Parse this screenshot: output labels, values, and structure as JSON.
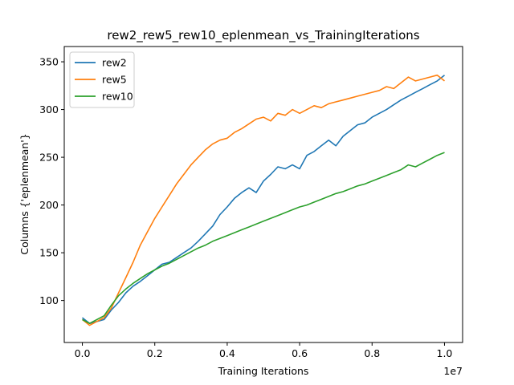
{
  "chart_data": {
    "type": "line",
    "title": "rew2_rew5_rew10_eplenmean_vs_TrainingIterations",
    "xlabel": "Training Iterations",
    "ylabel": "Columns {'eplenmean'}",
    "x_offset_label": "1e7",
    "xlim": [
      -0.05,
      1.05
    ],
    "ylim": [
      56,
      366
    ],
    "x_tick_values": [
      0.0,
      0.2,
      0.4,
      0.6,
      0.8,
      1.0
    ],
    "x_tick_labels": [
      "0.0",
      "0.2",
      "0.4",
      "0.6",
      "0.8",
      "1.0"
    ],
    "y_tick_values": [
      100,
      150,
      200,
      250,
      300,
      350
    ],
    "y_tick_labels": [
      "100",
      "150",
      "200",
      "250",
      "300",
      "350"
    ],
    "grid": false,
    "legend_position": "top-left",
    "series": [
      {
        "name": "rew2",
        "color": "#1f77b4",
        "x": [
          0.0,
          0.02,
          0.04,
          0.06,
          0.08,
          0.1,
          0.12,
          0.14,
          0.16,
          0.18,
          0.2,
          0.22,
          0.24,
          0.26,
          0.28,
          0.3,
          0.32,
          0.34,
          0.36,
          0.38,
          0.4,
          0.42,
          0.44,
          0.46,
          0.48,
          0.5,
          0.52,
          0.54,
          0.56,
          0.58,
          0.6,
          0.62,
          0.64,
          0.66,
          0.68,
          0.7,
          0.72,
          0.74,
          0.76,
          0.78,
          0.8,
          0.82,
          0.84,
          0.86,
          0.88,
          0.9,
          0.92,
          0.94,
          0.96,
          0.98,
          1.0
        ],
        "y": [
          82,
          76,
          78,
          80,
          90,
          98,
          108,
          115,
          120,
          126,
          132,
          138,
          140,
          145,
          150,
          155,
          162,
          170,
          178,
          190,
          198,
          207,
          213,
          218,
          213,
          225,
          232,
          240,
          238,
          242,
          238,
          252,
          256,
          262,
          268,
          262,
          272,
          278,
          284,
          286,
          292,
          296,
          300,
          305,
          310,
          314,
          318,
          322,
          326,
          330,
          336
        ]
      },
      {
        "name": "rew5",
        "color": "#ff7f0e",
        "x": [
          0.0,
          0.02,
          0.04,
          0.06,
          0.08,
          0.1,
          0.12,
          0.14,
          0.16,
          0.18,
          0.2,
          0.22,
          0.24,
          0.26,
          0.28,
          0.3,
          0.32,
          0.34,
          0.36,
          0.38,
          0.4,
          0.42,
          0.44,
          0.46,
          0.48,
          0.5,
          0.52,
          0.54,
          0.56,
          0.58,
          0.6,
          0.62,
          0.64,
          0.66,
          0.68,
          0.7,
          0.72,
          0.74,
          0.76,
          0.78,
          0.8,
          0.82,
          0.84,
          0.86,
          0.88,
          0.9,
          0.92,
          0.94,
          0.96,
          0.98,
          1.0
        ],
        "y": [
          80,
          74,
          78,
          82,
          92,
          108,
          124,
          140,
          158,
          172,
          186,
          198,
          210,
          222,
          232,
          242,
          250,
          258,
          264,
          268,
          270,
          276,
          280,
          285,
          290,
          292,
          288,
          296,
          294,
          300,
          296,
          300,
          304,
          302,
          306,
          308,
          310,
          312,
          314,
          316,
          318,
          320,
          324,
          322,
          328,
          334,
          330,
          332,
          334,
          336,
          330
        ]
      },
      {
        "name": "rew10",
        "color": "#2ca02c",
        "x": [
          0.0,
          0.02,
          0.04,
          0.06,
          0.08,
          0.1,
          0.12,
          0.14,
          0.16,
          0.18,
          0.2,
          0.22,
          0.24,
          0.26,
          0.28,
          0.3,
          0.32,
          0.34,
          0.36,
          0.38,
          0.4,
          0.42,
          0.44,
          0.46,
          0.48,
          0.5,
          0.52,
          0.54,
          0.56,
          0.58,
          0.6,
          0.62,
          0.64,
          0.66,
          0.68,
          0.7,
          0.72,
          0.74,
          0.76,
          0.78,
          0.8,
          0.82,
          0.84,
          0.86,
          0.88,
          0.9,
          0.92,
          0.94,
          0.96,
          0.98,
          1.0
        ],
        "y": [
          80,
          76,
          80,
          84,
          95,
          105,
          112,
          118,
          123,
          128,
          132,
          136,
          139,
          143,
          147,
          151,
          155,
          158,
          162,
          165,
          168,
          171,
          174,
          177,
          180,
          183,
          186,
          189,
          192,
          195,
          198,
          200,
          203,
          206,
          209,
          212,
          214,
          217,
          220,
          222,
          225,
          228,
          231,
          234,
          237,
          242,
          240,
          244,
          248,
          252,
          255
        ]
      }
    ]
  }
}
